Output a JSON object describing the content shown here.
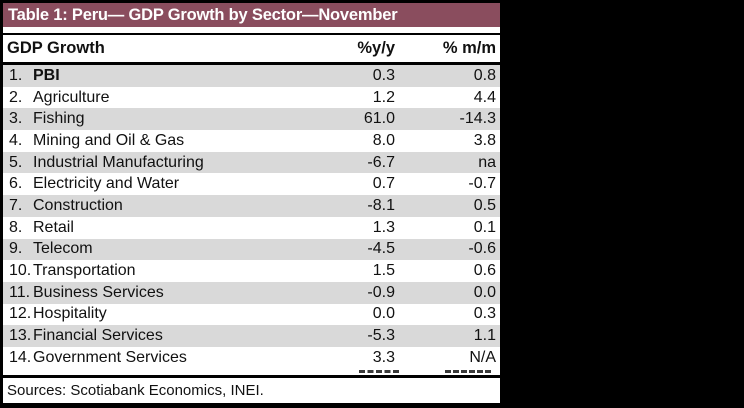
{
  "title_bar": {
    "text": "Table 1: Peru— GDP Growth by Sector—November"
  },
  "colors": {
    "title_bar_bg": "#8a4d5e",
    "title_bar_text": "#ffffff",
    "row_stripe": "#d9d9d9",
    "border": "#000000",
    "page_background": "#000000"
  },
  "chart_data": {
    "type": "table",
    "title": "Table 1: Peru— GDP Growth by Sector—November",
    "columns": {
      "label": "GDP Growth",
      "yoy": "%y/y",
      "mom": "% m/m"
    },
    "rows": [
      {
        "num": "1.",
        "label": "PBI",
        "yoy": "0.3",
        "mom": "0.8"
      },
      {
        "num": "2.",
        "label": "Agriculture",
        "yoy": "1.2",
        "mom": "4.4"
      },
      {
        "num": "3.",
        "label": "Fishing",
        "yoy": "61.0",
        "mom": "-14.3"
      },
      {
        "num": "4.",
        "label": "Mining and Oil & Gas",
        "yoy": "8.0",
        "mom": "3.8"
      },
      {
        "num": "5.",
        "label": "Industrial Manufacturing",
        "yoy": "-6.7",
        "mom": "na"
      },
      {
        "num": "6.",
        "label": "Electricity and Water",
        "yoy": "0.7",
        "mom": "-0.7"
      },
      {
        "num": "7.",
        "label": "Construction",
        "yoy": "-8.1",
        "mom": "0.5"
      },
      {
        "num": "8.",
        "label": "Retail",
        "yoy": "1.3",
        "mom": "0.1"
      },
      {
        "num": "9.",
        "label": "Telecom",
        "yoy": "-4.5",
        "mom": "-0.6"
      },
      {
        "num": "10.",
        "label": "Transportation",
        "yoy": "1.5",
        "mom": "0.6"
      },
      {
        "num": "11.",
        "label": "Business Services",
        "yoy": "-0.9",
        "mom": "0.0"
      },
      {
        "num": "12.",
        "label": "Hospitality",
        "yoy": "0.0",
        "mom": "0.3"
      },
      {
        "num": "13.",
        "label": "Financial Services",
        "yoy": "-5.3",
        "mom": "1.1"
      },
      {
        "num": "14.",
        "label": "Government Services",
        "yoy": "3.3",
        "mom": "N/A"
      }
    ],
    "sources": "Sources: Scotiabank Economics, INEI."
  }
}
